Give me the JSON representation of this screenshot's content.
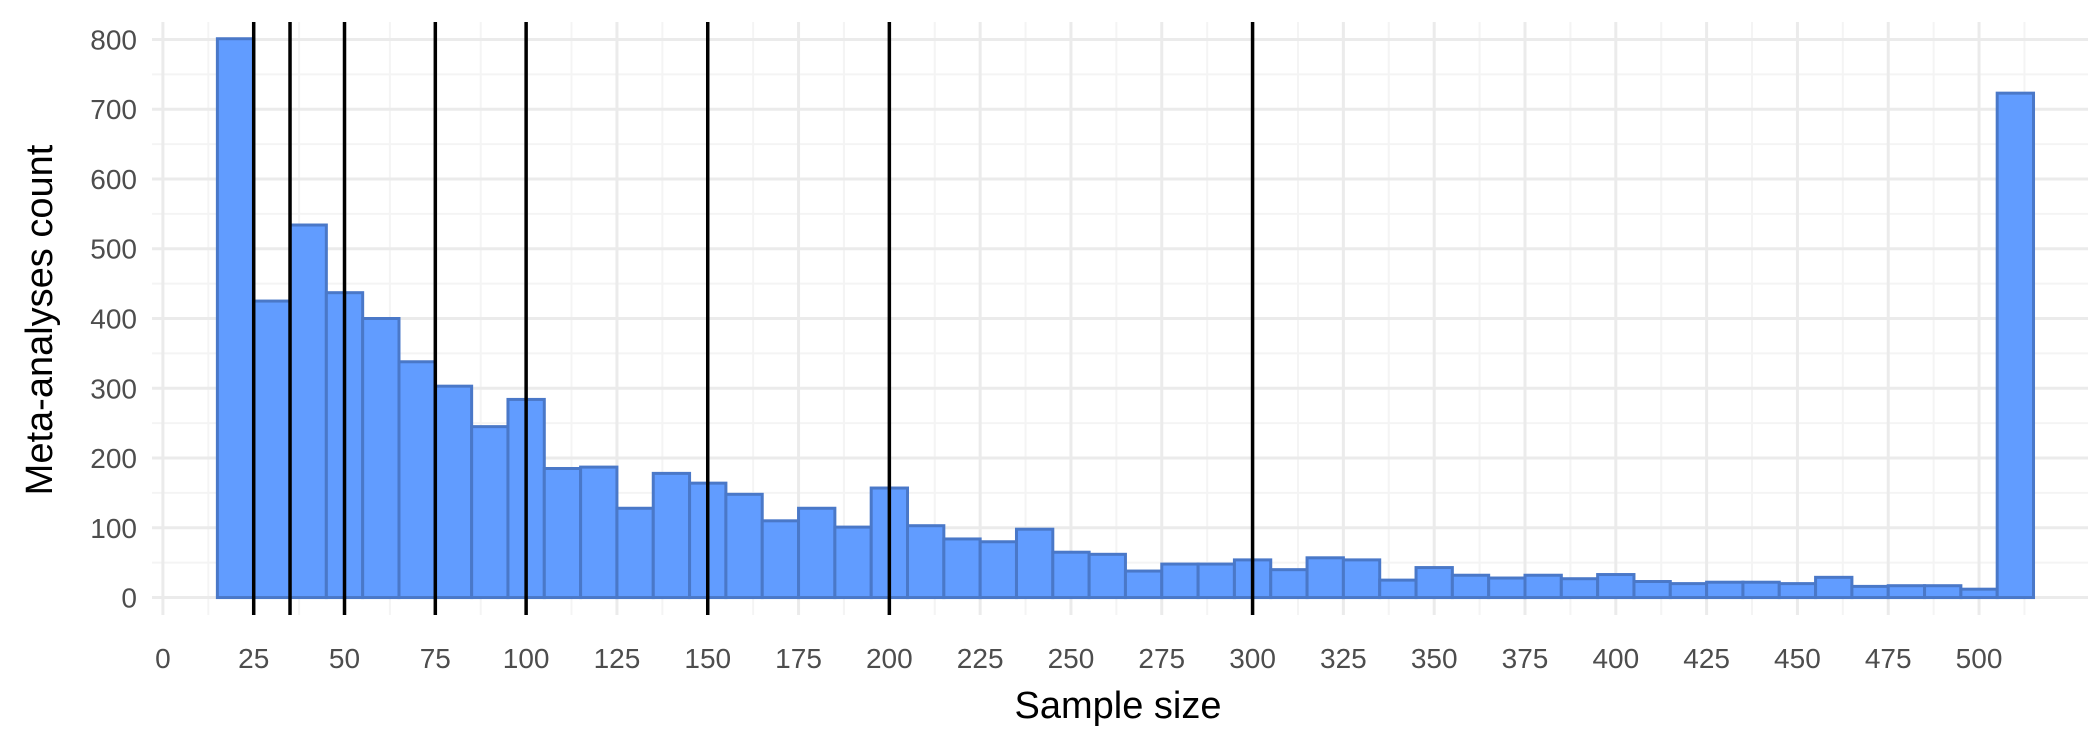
{
  "chart_data": {
    "type": "bar",
    "subtype": "histogram",
    "title": "",
    "xlabel": "Sample size",
    "ylabel": "Meta-analyses count",
    "xlim": [
      -3,
      530
    ],
    "ylim": [
      -25,
      825
    ],
    "x_ticks": [
      0,
      25,
      50,
      75,
      100,
      125,
      150,
      175,
      200,
      225,
      250,
      275,
      300,
      325,
      350,
      375,
      400,
      425,
      450,
      475,
      500
    ],
    "y_ticks": [
      0,
      100,
      200,
      300,
      400,
      500,
      600,
      700,
      800
    ],
    "bin_width": 10,
    "bin_starts": [
      15,
      25,
      35,
      45,
      55,
      65,
      75,
      85,
      95,
      105,
      115,
      125,
      135,
      145,
      155,
      165,
      175,
      185,
      195,
      205,
      215,
      225,
      235,
      245,
      255,
      265,
      275,
      285,
      295,
      305,
      315,
      325,
      335,
      345,
      355,
      365,
      375,
      385,
      395,
      405,
      415,
      425,
      435,
      445,
      455,
      465,
      475,
      485,
      495,
      505
    ],
    "values": [
      801,
      425,
      534,
      437,
      400,
      338,
      303,
      245,
      284,
      185,
      187,
      128,
      178,
      164,
      148,
      110,
      128,
      101,
      157,
      103,
      84,
      80,
      98,
      65,
      62,
      38,
      48,
      48,
      54,
      40,
      57,
      54,
      25,
      43,
      32,
      28,
      32,
      27,
      33,
      23,
      20,
      22,
      22,
      20,
      29,
      16,
      17,
      17,
      12,
      723
    ],
    "reference_lines": [
      25,
      35,
      50,
      75,
      100,
      150,
      200,
      300
    ],
    "grid": true,
    "colors": {
      "bar_fill": "#619cff",
      "bar_stroke": "#4a78c8",
      "reference_line": "#000000",
      "grid_major": "#ebebeb",
      "grid_minor": "#f4f4f4",
      "tick_text": "#4d4d4d"
    }
  }
}
